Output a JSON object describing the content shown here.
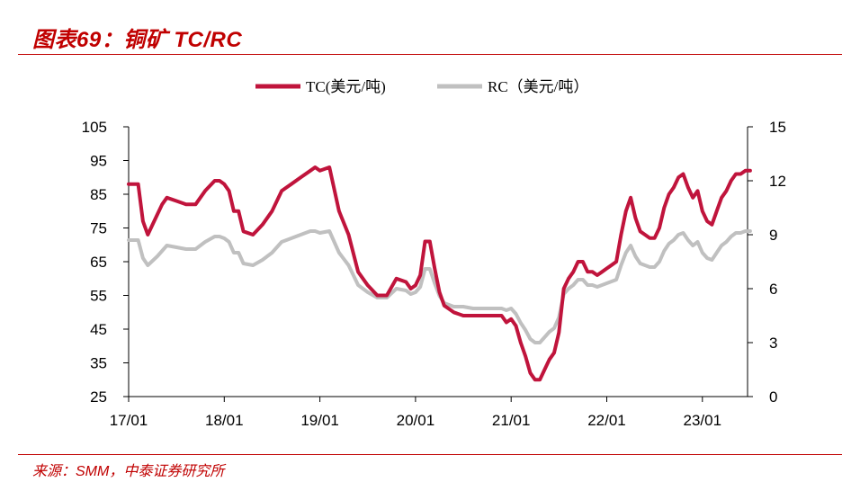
{
  "header": {
    "title": "图表69：铜矿 TC/RC"
  },
  "footer": {
    "source": "来源：SMM，中泰证券研究所"
  },
  "colors": {
    "accent": "#c00000",
    "tc_series": "#c0143c",
    "rc_series": "#c0c0c0"
  },
  "chart_data": {
    "type": "line",
    "x_ticks": [
      "17/01",
      "18/01",
      "19/01",
      "20/01",
      "21/01",
      "22/01",
      "23/01"
    ],
    "y_left": {
      "range": [
        25,
        105
      ],
      "ticks": [
        25,
        35,
        45,
        55,
        65,
        75,
        85,
        95,
        105
      ]
    },
    "y_right": {
      "range": [
        0,
        15
      ],
      "ticks": [
        0,
        3,
        6,
        9,
        12,
        15
      ]
    },
    "legend_position": "top-center",
    "grid": false,
    "series": [
      {
        "name": "TC(美元/吨)",
        "axis": "left",
        "x": [
          2017.0,
          2017.1,
          2017.15,
          2017.2,
          2017.3,
          2017.35,
          2017.4,
          2017.5,
          2017.6,
          2017.7,
          2017.8,
          2017.9,
          2017.95,
          2018.0,
          2018.05,
          2018.1,
          2018.15,
          2018.2,
          2018.3,
          2018.4,
          2018.5,
          2018.6,
          2018.65,
          2018.7,
          2018.8,
          2018.9,
          2018.95,
          2019.0,
          2019.1,
          2019.2,
          2019.3,
          2019.4,
          2019.5,
          2019.6,
          2019.7,
          2019.8,
          2019.9,
          2019.95,
          2020.0,
          2020.05,
          2020.1,
          2020.15,
          2020.2,
          2020.25,
          2020.3,
          2020.35,
          2020.4,
          2020.5,
          2020.6,
          2020.7,
          2020.8,
          2020.9,
          2020.95,
          2021.0,
          2021.05,
          2021.1,
          2021.15,
          2021.2,
          2021.25,
          2021.3,
          2021.35,
          2021.4,
          2021.45,
          2021.5,
          2021.55,
          2021.6,
          2021.65,
          2021.7,
          2021.75,
          2021.8,
          2021.85,
          2021.9,
          2021.95,
          2022.0,
          2022.05,
          2022.1,
          2022.15,
          2022.2,
          2022.25,
          2022.3,
          2022.35,
          2022.4,
          2022.45,
          2022.5,
          2022.55,
          2022.6,
          2022.65,
          2022.7,
          2022.75,
          2022.8,
          2022.85,
          2022.9,
          2022.95,
          2023.0,
          2023.05,
          2023.1,
          2023.15,
          2023.2,
          2023.25,
          2023.3,
          2023.35,
          2023.4,
          2023.45,
          2023.5
        ],
        "values": [
          88,
          88,
          77,
          73,
          79,
          82,
          84,
          83,
          82,
          82,
          86,
          89,
          89,
          88,
          86,
          80,
          80,
          74,
          73,
          76,
          80,
          86,
          87,
          88,
          90,
          92,
          93,
          92,
          93,
          80,
          73,
          62,
          58,
          55,
          55,
          60,
          59,
          57,
          58,
          61,
          71,
          71,
          63,
          56,
          52,
          51,
          50,
          49,
          49,
          49,
          49,
          49,
          47,
          48,
          46,
          41,
          37,
          32,
          30,
          30,
          33,
          36,
          38,
          44,
          57,
          60,
          62,
          65,
          65,
          62,
          62,
          61,
          62,
          63,
          64,
          65,
          73,
          80,
          84,
          78,
          74,
          73,
          72,
          72,
          75,
          81,
          85,
          87,
          90,
          91,
          87,
          84,
          86,
          80,
          77,
          76,
          80,
          84,
          86,
          89,
          91,
          91,
          92,
          92
        ]
      },
      {
        "name": "RC（美元/吨）",
        "axis": "right",
        "x": [
          2017.0,
          2017.1,
          2017.15,
          2017.2,
          2017.3,
          2017.35,
          2017.4,
          2017.5,
          2017.6,
          2017.7,
          2017.8,
          2017.9,
          2017.95,
          2018.0,
          2018.05,
          2018.1,
          2018.15,
          2018.2,
          2018.3,
          2018.4,
          2018.5,
          2018.6,
          2018.65,
          2018.7,
          2018.8,
          2018.9,
          2018.95,
          2019.0,
          2019.1,
          2019.2,
          2019.3,
          2019.4,
          2019.5,
          2019.6,
          2019.7,
          2019.8,
          2019.9,
          2019.95,
          2020.0,
          2020.05,
          2020.1,
          2020.15,
          2020.2,
          2020.25,
          2020.3,
          2020.35,
          2020.4,
          2020.5,
          2020.6,
          2020.7,
          2020.8,
          2020.9,
          2020.95,
          2021.0,
          2021.05,
          2021.1,
          2021.15,
          2021.2,
          2021.25,
          2021.3,
          2021.35,
          2021.4,
          2021.45,
          2021.5,
          2021.55,
          2021.6,
          2021.65,
          2021.7,
          2021.75,
          2021.8,
          2021.85,
          2021.9,
          2021.95,
          2022.0,
          2022.05,
          2022.1,
          2022.15,
          2022.2,
          2022.25,
          2022.3,
          2022.35,
          2022.4,
          2022.45,
          2022.5,
          2022.55,
          2022.6,
          2022.65,
          2022.7,
          2022.75,
          2022.8,
          2022.85,
          2022.9,
          2022.95,
          2023.0,
          2023.05,
          2023.1,
          2023.15,
          2023.2,
          2023.25,
          2023.3,
          2023.35,
          2023.4,
          2023.45,
          2023.5
        ],
        "values": [
          8.7,
          8.7,
          7.7,
          7.3,
          7.8,
          8.1,
          8.4,
          8.3,
          8.2,
          8.2,
          8.6,
          8.9,
          8.9,
          8.8,
          8.6,
          8.0,
          8.0,
          7.4,
          7.3,
          7.6,
          8.0,
          8.6,
          8.7,
          8.8,
          9.0,
          9.2,
          9.2,
          9.1,
          9.2,
          8.0,
          7.3,
          6.2,
          5.8,
          5.5,
          5.5,
          6.0,
          5.9,
          5.7,
          5.8,
          6.1,
          7.1,
          7.1,
          6.3,
          5.6,
          5.2,
          5.1,
          5.0,
          5.0,
          4.9,
          4.9,
          4.9,
          4.9,
          4.8,
          4.9,
          4.6,
          4.1,
          3.7,
          3.2,
          3.0,
          3.0,
          3.3,
          3.6,
          3.8,
          4.4,
          5.7,
          6.0,
          6.2,
          6.5,
          6.5,
          6.2,
          6.2,
          6.1,
          6.2,
          6.3,
          6.4,
          6.5,
          7.3,
          8.0,
          8.4,
          7.8,
          7.4,
          7.3,
          7.2,
          7.2,
          7.5,
          8.1,
          8.5,
          8.7,
          9.0,
          9.1,
          8.7,
          8.4,
          8.6,
          8.0,
          7.7,
          7.6,
          8.0,
          8.4,
          8.6,
          8.9,
          9.1,
          9.1,
          9.2,
          9.2
        ]
      }
    ]
  }
}
